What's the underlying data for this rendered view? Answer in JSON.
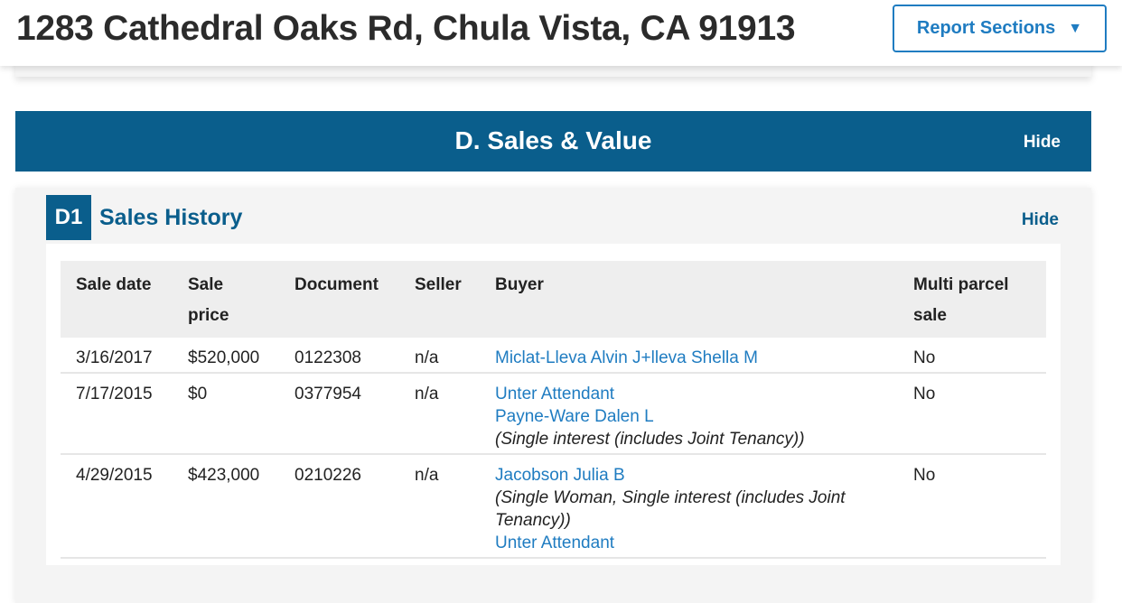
{
  "header": {
    "title": "1283 Cathedral Oaks Rd, Chula Vista, CA 91913",
    "report_sections": "Report Sections",
    "caret": "▼"
  },
  "section": {
    "title": "D. Sales & Value",
    "hide": "Hide"
  },
  "subsection": {
    "badge": "D1",
    "title": "Sales History",
    "hide": "Hide"
  },
  "table": {
    "headers": [
      "Sale date",
      "Sale price",
      "Document",
      "Seller",
      "Buyer",
      "Multi parcel sale"
    ],
    "rows": [
      {
        "date": "3/16/2017",
        "price": "$520,000",
        "document": "0122308",
        "seller": "n/a",
        "buyer": [
          {
            "type": "link",
            "text": "Miclat-Lleva Alvin J+lleva Shella M"
          }
        ],
        "multi": "No"
      },
      {
        "date": "7/17/2015",
        "price": "$0",
        "document": "0377954",
        "seller": "n/a",
        "buyer": [
          {
            "type": "link",
            "text": "Unter Attendant"
          },
          {
            "type": "link",
            "text": "Payne-Ware Dalen L"
          },
          {
            "type": "note",
            "text": "(Single interest (includes Joint Tenancy))"
          }
        ],
        "multi": "No"
      },
      {
        "date": "4/29/2015",
        "price": "$423,000",
        "document": "0210226",
        "seller": "n/a",
        "buyer": [
          {
            "type": "link",
            "text": "Jacobson Julia B"
          },
          {
            "type": "note",
            "text": "(Single Woman, Single interest (includes Joint Tenancy))"
          },
          {
            "type": "link",
            "text": "Unter Attendant"
          }
        ],
        "multi": "No"
      }
    ]
  }
}
